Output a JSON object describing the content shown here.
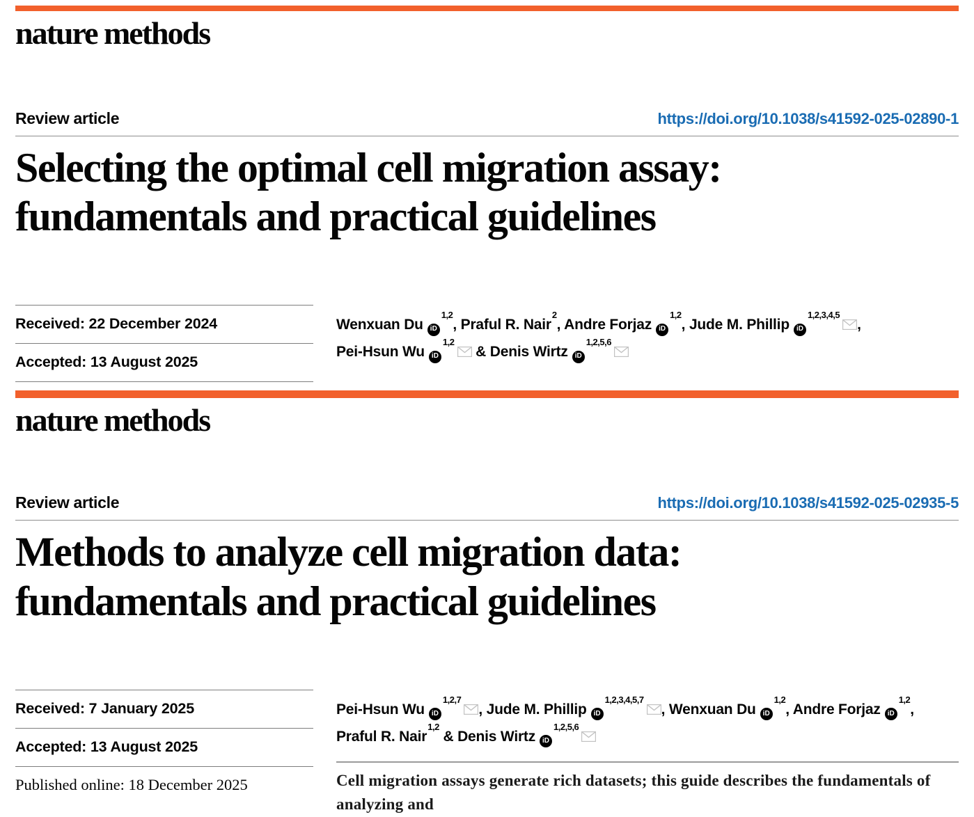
{
  "brand": {
    "logo_text": "nature methods",
    "accent_color": "#f2602c",
    "link_color": "#1a6cb3",
    "rule_color": "#7d7d7d",
    "orcid_icon_text": "iD"
  },
  "articles": [
    {
      "kicker": "Review article",
      "doi": "https://doi.org/10.1038/s41592-025-02890-1",
      "title_lines": [
        "Selecting the optimal cell migration assay:",
        "fundamentals and practical guidelines"
      ],
      "dates": [
        {
          "label": "Received:",
          "value": "22 December 2024",
          "serif": false
        },
        {
          "label": "Accepted:",
          "value": "13 August 2025",
          "serif": false
        }
      ],
      "dates_closed": true,
      "authors": [
        {
          "name": "Wenxuan Du",
          "orcid": true,
          "sup": "1,2",
          "mail": false
        },
        {
          "name": "Praful R. Nair",
          "orcid": false,
          "sup": "2",
          "mail": false
        },
        {
          "name": "Andre Forjaz",
          "orcid": true,
          "sup": "1,2",
          "mail": false
        },
        {
          "name": "Jude M. Phillip",
          "orcid": true,
          "sup": "1,2,3,4,5",
          "mail": true
        },
        {
          "name": "Pei-Hsun Wu",
          "orcid": true,
          "sup": "1,2",
          "mail": true
        },
        {
          "name": "Denis Wirtz",
          "orcid": true,
          "sup": "1,2,5,6",
          "mail": true
        }
      ]
    },
    {
      "kicker": "Review article",
      "doi": "https://doi.org/10.1038/s41592-025-02935-5",
      "title_lines": [
        "Methods to analyze cell migration data:",
        "fundamentals and practical guidelines"
      ],
      "dates": [
        {
          "label": "Received:",
          "value": "7 January 2025",
          "serif": false
        },
        {
          "label": "Accepted:",
          "value": "13 August 2025",
          "serif": false
        },
        {
          "label": "Published online:",
          "value": "18 December 2025",
          "serif": true
        }
      ],
      "dates_closed": false,
      "authors": [
        {
          "name": "Pei-Hsun Wu",
          "orcid": true,
          "sup": "1,2,7",
          "mail": true
        },
        {
          "name": "Jude M. Phillip",
          "orcid": true,
          "sup": "1,2,3,4,5,7",
          "mail": true
        },
        {
          "name": "Wenxuan Du",
          "orcid": true,
          "sup": "1,2",
          "mail": false
        },
        {
          "name": "Andre Forjaz",
          "orcid": true,
          "sup": "1,2",
          "mail": false
        },
        {
          "name": "Praful R. Nair",
          "orcid": false,
          "sup": "1,2",
          "mail": false
        },
        {
          "name": "Denis Wirtz",
          "orcid": true,
          "sup": "1,2,5,6",
          "mail": true
        }
      ],
      "abstract_teaser": "Cell migration assays generate rich datasets; this guide describes the fundamentals of analyzing and"
    }
  ]
}
